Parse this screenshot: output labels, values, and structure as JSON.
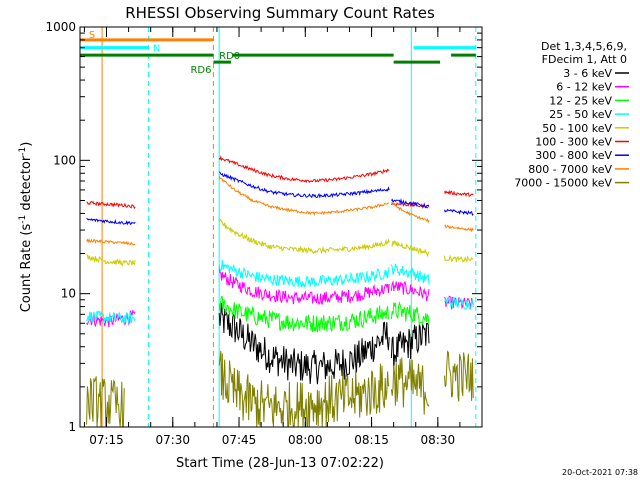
{
  "chart_data": {
    "type": "line",
    "title": "RHESSI Observing Summary Count Rates",
    "xlabel": "Start Time (28-Jun-13 07:02:22)",
    "ylabel_parts": [
      "Count Rate (s",
      "-1",
      " detector",
      "-1",
      ")"
    ],
    "yscale": "log",
    "ylim": [
      1,
      1000
    ],
    "xlim_minutes": [
      7.0,
      98.0
    ],
    "x_ticks": [
      {
        "minute": 13,
        "label": "07:15"
      },
      {
        "minute": 28,
        "label": "07:30"
      },
      {
        "minute": 43,
        "label": "07:45"
      },
      {
        "minute": 58,
        "label": "08:00"
      },
      {
        "minute": 73,
        "label": "08:15"
      },
      {
        "minute": 88,
        "label": "08:30"
      }
    ],
    "x_minor_step": 5,
    "y_ticks": [
      {
        "value": 1,
        "label": "1"
      },
      {
        "value": 10,
        "label": "10"
      },
      {
        "value": 100,
        "label": "100"
      },
      {
        "value": 1000,
        "label": "1000"
      }
    ],
    "legend_header": [
      "Det 1,3,4,5,6,9,",
      "FDecim 1, Att 0"
    ],
    "series": [
      {
        "name": "3 - 6 keV",
        "color": "#000000",
        "segments": [
          [
            [
              38.5,
              6.5
            ],
            [
              42,
              5.5
            ],
            [
              46,
              4.2
            ],
            [
              50,
              3.4
            ],
            [
              55,
              2.9
            ],
            [
              60,
              2.8
            ],
            [
              65,
              2.9
            ],
            [
              70,
              3.3
            ],
            [
              73,
              4.0
            ],
            [
              77,
              5.0
            ]
          ],
          [
            [
              77.5,
              3.5
            ],
            [
              80,
              4.0
            ],
            [
              83,
              4.5
            ],
            [
              86,
              5.0
            ]
          ]
        ],
        "noise": 0.13
      },
      {
        "name": "6 - 12 keV",
        "color": "#ff00ff",
        "segments": [
          [
            [
              8.5,
              6.5
            ],
            [
              13,
              6.2
            ],
            [
              17,
              6.5
            ],
            [
              19.5,
              6.8
            ]
          ],
          [
            [
              38.5,
              14
            ],
            [
              42,
              12
            ],
            [
              46,
              10.5
            ],
            [
              50,
              9.8
            ],
            [
              55,
              9.3
            ],
            [
              60,
              9.2
            ],
            [
              65,
              9.4
            ],
            [
              70,
              9.8
            ],
            [
              74,
              10.5
            ],
            [
              77,
              11
            ]
          ],
          [
            [
              77.5,
              11.5
            ],
            [
              80,
              11
            ],
            [
              83,
              10.5
            ],
            [
              86,
              9.7
            ]
          ],
          [
            [
              89.5,
              8.6
            ],
            [
              93,
              8.4
            ],
            [
              96,
              8.3
            ]
          ]
        ],
        "noise": 0.05
      },
      {
        "name": "12 - 25 keV",
        "color": "#00ff00",
        "segments": [
          [
            [
              38.5,
              8.5
            ],
            [
              42,
              7.5
            ],
            [
              46,
              6.8
            ],
            [
              50,
              6.4
            ],
            [
              55,
              6.1
            ],
            [
              60,
              6.0
            ],
            [
              65,
              6.1
            ],
            [
              70,
              6.4
            ],
            [
              73,
              6.8
            ],
            [
              77,
              7.2
            ]
          ],
          [
            [
              77.5,
              7.5
            ],
            [
              80,
              7.3
            ],
            [
              83,
              7.0
            ],
            [
              86,
              6.5
            ]
          ]
        ],
        "noise": 0.07
      },
      {
        "name": "25 - 50 keV",
        "color": "#00ffff",
        "segments": [
          [
            [
              8.5,
              6.8
            ],
            [
              13,
              6.6
            ],
            [
              17,
              6.5
            ],
            [
              19.5,
              6.5
            ]
          ],
          [
            [
              38.5,
              16.5
            ],
            [
              42,
              15
            ],
            [
              46,
              13.5
            ],
            [
              50,
              12.8
            ],
            [
              55,
              12.4
            ],
            [
              60,
              12.3
            ],
            [
              65,
              12.6
            ],
            [
              70,
              13
            ],
            [
              74,
              13.8
            ],
            [
              77,
              14.5
            ]
          ],
          [
            [
              77.5,
              15.5
            ],
            [
              80,
              14.8
            ],
            [
              83,
              14.0
            ],
            [
              86,
              12.5
            ]
          ],
          [
            [
              89.5,
              8.8
            ],
            [
              93,
              8.5
            ],
            [
              96,
              8.4
            ]
          ]
        ],
        "noise": 0.045
      },
      {
        "name": "50 - 100 keV",
        "color": "#cccc00",
        "segments": [
          [
            [
              8.5,
              19
            ],
            [
              13,
              17.5
            ],
            [
              17,
              17
            ],
            [
              19.5,
              17
            ]
          ],
          [
            [
              38.5,
              35
            ],
            [
              42,
              29
            ],
            [
              46,
              25
            ],
            [
              50,
              22.5
            ],
            [
              55,
              21.5
            ],
            [
              60,
              21
            ],
            [
              65,
              21.3
            ],
            [
              70,
              22
            ],
            [
              74,
              23
            ],
            [
              77,
              24.5
            ]
          ],
          [
            [
              77.5,
              24
            ],
            [
              80,
              23
            ],
            [
              83,
              21.5
            ],
            [
              86,
              20
            ]
          ],
          [
            [
              89.5,
              18.5
            ],
            [
              93,
              18
            ],
            [
              96,
              18
            ]
          ]
        ],
        "noise": 0.02
      },
      {
        "name": "100 - 300 keV",
        "color": "#ff0000",
        "segments": [
          [
            [
              8.5,
              48
            ],
            [
              13,
              47
            ],
            [
              17,
              46
            ],
            [
              19.5,
              45
            ]
          ],
          [
            [
              38.5,
              105
            ],
            [
              42,
              95
            ],
            [
              46,
              85
            ],
            [
              50,
              77
            ],
            [
              55,
              72
            ],
            [
              60,
              70
            ],
            [
              65,
              72
            ],
            [
              70,
              76
            ],
            [
              74,
              80
            ],
            [
              77,
              85
            ]
          ],
          [
            [
              77.5,
              47
            ],
            [
              80,
              47
            ],
            [
              83,
              46
            ],
            [
              86,
              45
            ]
          ],
          [
            [
              89.5,
              58
            ],
            [
              93,
              56
            ],
            [
              96,
              55
            ]
          ]
        ],
        "noise": 0.012
      },
      {
        "name": "300 - 800 keV",
        "color": "#0000ff",
        "segments": [
          [
            [
              8.5,
              36
            ],
            [
              13,
              35
            ],
            [
              17,
              34
            ],
            [
              19.5,
              34
            ]
          ],
          [
            [
              38.5,
              80
            ],
            [
              42,
              72
            ],
            [
              46,
              64
            ],
            [
              50,
              58
            ],
            [
              55,
              55
            ],
            [
              60,
              54
            ],
            [
              65,
              55
            ],
            [
              70,
              57
            ],
            [
              74,
              59
            ],
            [
              77,
              61
            ]
          ],
          [
            [
              77.5,
              50
            ],
            [
              80,
              49
            ],
            [
              83,
              47
            ],
            [
              86,
              45
            ]
          ],
          [
            [
              89.5,
              42
            ],
            [
              93,
              41
            ],
            [
              96,
              40
            ]
          ]
        ],
        "noise": 0.012
      },
      {
        "name": "800 - 7000 keV",
        "color": "#ff8000",
        "segments": [
          [
            [
              8.5,
              25
            ],
            [
              13,
              24.5
            ],
            [
              17,
              24
            ],
            [
              19.5,
              23.5
            ]
          ],
          [
            [
              38.5,
              75
            ],
            [
              42,
              60
            ],
            [
              46,
              50
            ],
            [
              50,
              45
            ],
            [
              55,
              42
            ],
            [
              60,
              40
            ],
            [
              65,
              41
            ],
            [
              70,
              43
            ],
            [
              74,
              45
            ],
            [
              77,
              48
            ]
          ],
          [
            [
              77.5,
              48
            ],
            [
              80,
              42
            ],
            [
              83,
              38
            ],
            [
              86,
              35
            ]
          ],
          [
            [
              89.5,
              32
            ],
            [
              93,
              31
            ],
            [
              96,
              30
            ]
          ]
        ],
        "noise": 0.01
      },
      {
        "name": "7000 - 15000 keV",
        "color": "#808000",
        "segments": [
          [
            [
              8.5,
              1.6
            ],
            [
              13,
              1.5
            ],
            [
              17,
              1.4
            ]
          ],
          [
            [
              38.5,
              2.5
            ],
            [
              42,
              1.8
            ],
            [
              46,
              1.5
            ],
            [
              50,
              1.4
            ],
            [
              55,
              1.4
            ],
            [
              60,
              1.5
            ],
            [
              65,
              1.6
            ],
            [
              70,
              1.7
            ],
            [
              74,
              1.9
            ],
            [
              77,
              2.0
            ]
          ],
          [
            [
              77.5,
              2.3
            ],
            [
              80,
              2.2
            ],
            [
              83,
              2.0
            ],
            [
              86,
              1.9
            ]
          ],
          [
            [
              89.5,
              2.5
            ],
            [
              93,
              2.4
            ],
            [
              96,
              2.4
            ]
          ]
        ],
        "noise": 0.2
      }
    ],
    "vertical_lines": [
      {
        "minute": 12.0,
        "color": "#ff8000",
        "style": "solid"
      },
      {
        "minute": 22.5,
        "color": "#00ffff",
        "style": "dashed"
      },
      {
        "minute": 37.2,
        "color": "#ff8000",
        "style": "dashed"
      },
      {
        "minute": 38.5,
        "color": "#00ffff",
        "style": "solid"
      },
      {
        "minute": 82.0,
        "color": "#00ffff",
        "style": "solid"
      },
      {
        "minute": 96.6,
        "color": "#00ffff",
        "style": "dashed"
      }
    ],
    "status_bars": [
      {
        "label": "S",
        "color": "#ff8000",
        "value": 800,
        "segments": [
          [
            7.0,
            37.2
          ]
        ],
        "label_minute": 9.0
      },
      {
        "label": "N",
        "color": "#00ffff",
        "value": 700,
        "segments": [
          [
            7.0,
            22.5
          ],
          [
            82.5,
            96.6
          ]
        ],
        "label_minute": 23.5
      },
      {
        "label": "RD0",
        "color": "#008000",
        "value": 615,
        "segments": [
          [
            7.0,
            37.2
          ],
          [
            41.5,
            78.0
          ],
          [
            91.0,
            96.6
          ]
        ],
        "label_minute": 38.5
      },
      {
        "label": "RD6",
        "color": "#008000",
        "value": 545,
        "segments": [
          [
            37.2,
            41.2
          ],
          [
            78.0,
            88.5
          ]
        ],
        "label_minute": 32.0
      }
    ],
    "footer_timestamp": "20-Oct-2021 07:38"
  }
}
